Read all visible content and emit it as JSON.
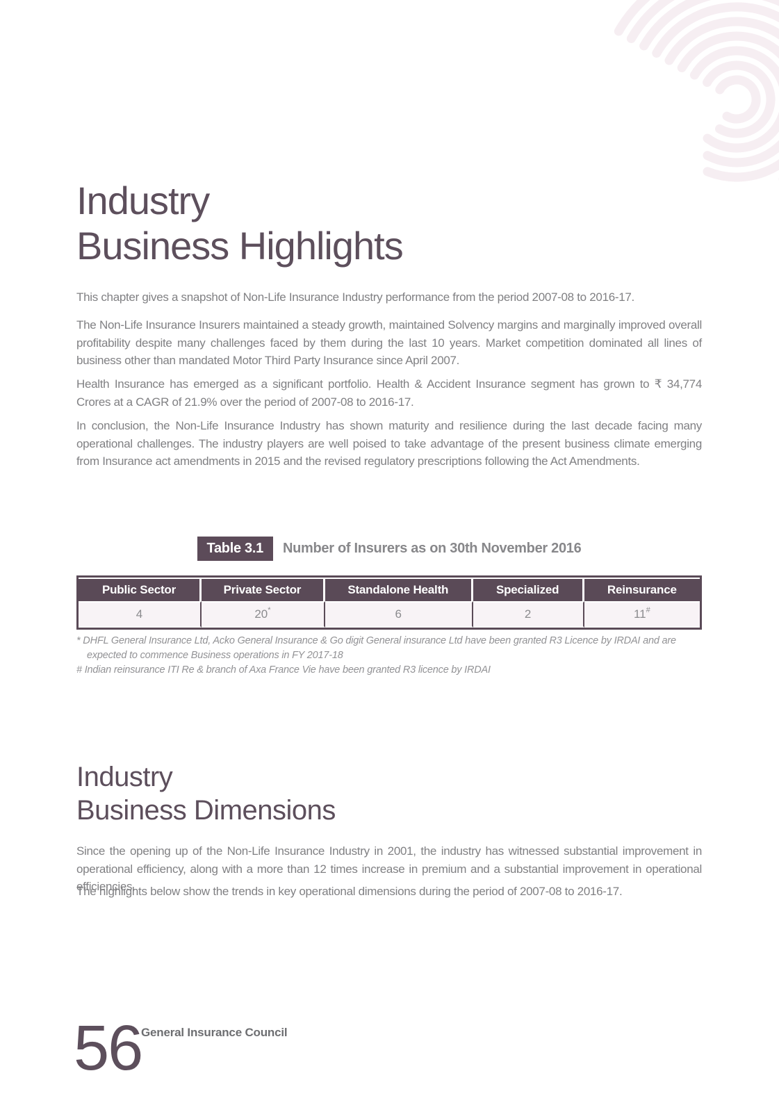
{
  "colors": {
    "accent": "#5d4f5c",
    "table_header_bg": "#5a4a57",
    "table_row_bg": "#f8f3f6",
    "body_text": "#808083",
    "arc": "#f6eef2"
  },
  "section1": {
    "title_line1": "Industry",
    "title_line2": "Business Highlights",
    "paragraphs": [
      "This chapter gives a snapshot of Non-Life Insurance Industry performance from the period 2007-08 to 2016-17.",
      "The Non-Life Insurance Insurers maintained a steady growth, maintained Solvency margins and marginally improved overall profitability despite many challenges faced by them during the last 10 years. Market competition dominated all lines of business other than mandated Motor Third Party Insurance since April 2007.",
      "Health Insurance has emerged as a significant portfolio. Health & Accident Insurance segment has grown to ₹ 34,774 Crores at a CAGR of 21.9% over the period of 2007-08 to 2016-17.",
      "In conclusion, the Non-Life Insurance Industry has shown maturity and resilience during the last decade facing many operational challenges. The industry players are well poised to take advantage of the present business climate emerging from Insurance act amendments in 2015 and the revised regulatory prescriptions following the Act Amendments."
    ]
  },
  "table": {
    "badge": "Table 3.1",
    "caption": "Number of Insurers as on 30th November 2016",
    "columns": [
      {
        "header": "Public Sector",
        "value": "4",
        "sup": ""
      },
      {
        "header": "Private Sector",
        "value": "20",
        "sup": "*"
      },
      {
        "header": "Standalone Health",
        "value": "6",
        "sup": ""
      },
      {
        "header": "Specialized",
        "value": "2",
        "sup": ""
      },
      {
        "header": "Reinsurance",
        "value": "11",
        "sup": "#"
      }
    ],
    "footnotes": [
      {
        "marker": "*",
        "text": "DHFL General Insurance Ltd, Acko General Insurance & Go digit General insurance Ltd have been granted R3 Licence by IRDAI and are expected to commence Business operations in FY 2017-18"
      },
      {
        "marker": "#",
        "text": "Indian reinsurance ITI Re & branch of Axa France Vie have been granted R3 licence by IRDAI"
      }
    ]
  },
  "section2": {
    "title_line1": "Industry",
    "title_line2": "Business Dimensions",
    "paragraphs": [
      "Since the opening up of the Non-Life Insurance Industry in 2001, the industry has witnessed substantial improvement in operational efficiency, along with a more than 12 times increase in premium and a substantial improvement in operational efficiencies.",
      "The highlights below show the trends in key operational dimensions during the period of 2007-08 to 2016-17."
    ]
  },
  "footer": {
    "page_number": "56",
    "label": "General Insurance Council"
  }
}
